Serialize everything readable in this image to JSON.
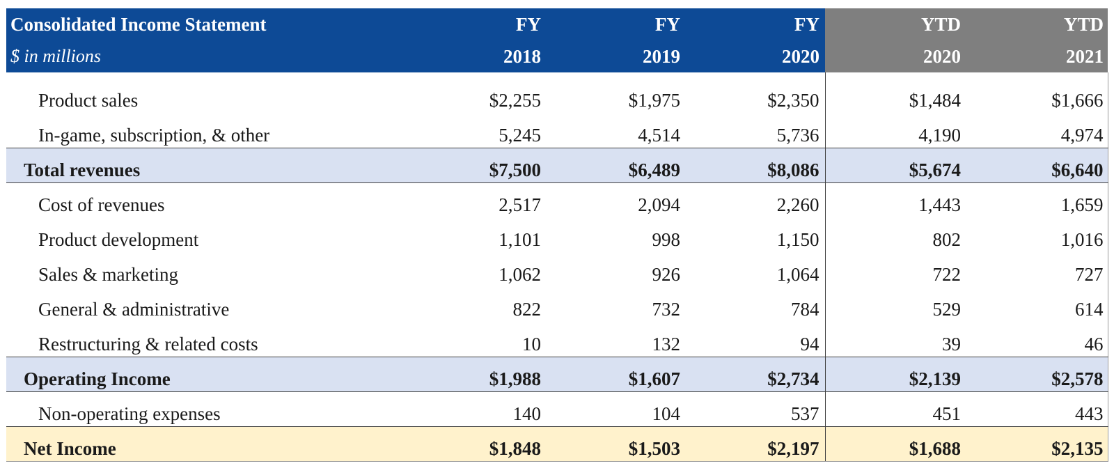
{
  "statement": {
    "title": "Consolidated Income Statement",
    "subtitle": "$ in millions",
    "columns": [
      {
        "line1": "FY",
        "line2": "2018"
      },
      {
        "line1": "FY",
        "line2": "2019"
      },
      {
        "line1": "FY",
        "line2": "2020"
      },
      {
        "line1": "YTD",
        "line2": "2020"
      },
      {
        "line1": "YTD",
        "line2": "2021"
      }
    ],
    "rows": [
      {
        "label": "Product sales",
        "values": [
          "$2,255",
          "$1,975",
          "$2,350",
          "$1,484",
          "$1,666"
        ]
      },
      {
        "label": "In-game, subscription, & other",
        "values": [
          "5,245",
          "4,514",
          "5,736",
          "4,190",
          "4,974"
        ]
      },
      {
        "label": "Total revenues",
        "values": [
          "$7,500",
          "$6,489",
          "$8,086",
          "$5,674",
          "$6,640"
        ]
      },
      {
        "label": "Cost of revenues",
        "values": [
          "2,517",
          "2,094",
          "2,260",
          "1,443",
          "1,659"
        ]
      },
      {
        "label": "Product development",
        "values": [
          "1,101",
          "998",
          "1,150",
          "802",
          "1,016"
        ]
      },
      {
        "label": "Sales & marketing",
        "values": [
          "1,062",
          "926",
          "1,064",
          "722",
          "727"
        ]
      },
      {
        "label": "General & administrative",
        "values": [
          "822",
          "732",
          "784",
          "529",
          "614"
        ]
      },
      {
        "label": "Restructuring & related costs",
        "values": [
          "10",
          "132",
          "94",
          "39",
          "46"
        ]
      },
      {
        "label": "Operating Income",
        "values": [
          "$1,988",
          "$1,607",
          "$2,734",
          "$2,139",
          "$2,578"
        ]
      },
      {
        "label": "Non-operating expenses",
        "values": [
          "140",
          "104",
          "537",
          "451",
          "443"
        ]
      },
      {
        "label": "Net Income",
        "values": [
          "$1,848",
          "$1,503",
          "$2,197",
          "$1,688",
          "$2,135"
        ]
      }
    ],
    "colors": {
      "header_blue": "#0d4a96",
      "header_gray": "#7f7f7f",
      "total_row_fill": "#d9e1f2",
      "net_income_fill": "#fff2cc"
    }
  }
}
